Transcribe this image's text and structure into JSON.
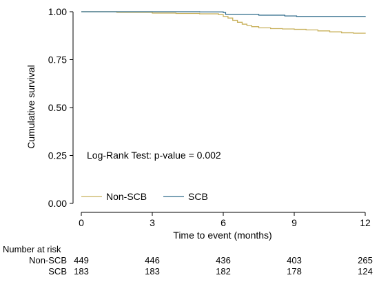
{
  "chart_data": {
    "type": "line",
    "subtype": "kaplan-meier step",
    "ylabel": "Cumulative survival",
    "xlabel": "Time to event (months)",
    "xlim": [
      0,
      12
    ],
    "ylim": [
      0,
      1
    ],
    "x_ticks": [
      "0",
      "3",
      "6",
      "9",
      "12"
    ],
    "y_ticks": [
      "0.00",
      "0.25",
      "0.50",
      "0.75",
      "1.00"
    ],
    "annotation": "Log-Rank Test: p-value = 0.002",
    "legend_position": "bottom-left inside plot",
    "grid": false,
    "series": [
      {
        "name": "Non-SCB",
        "color": "#c8b05a",
        "points": [
          [
            0,
            1.0
          ],
          [
            1.5,
            0.997
          ],
          [
            3.0,
            0.993
          ],
          [
            4.0,
            0.991
          ],
          [
            5.0,
            0.989
          ],
          [
            5.8,
            0.985
          ],
          [
            6.0,
            0.975
          ],
          [
            6.2,
            0.967
          ],
          [
            6.4,
            0.955
          ],
          [
            6.6,
            0.945
          ],
          [
            6.8,
            0.935
          ],
          [
            7.0,
            0.928
          ],
          [
            7.2,
            0.922
          ],
          [
            7.5,
            0.916
          ],
          [
            8.0,
            0.912
          ],
          [
            8.5,
            0.91
          ],
          [
            9.0,
            0.908
          ],
          [
            9.5,
            0.905
          ],
          [
            10.0,
            0.9
          ],
          [
            10.5,
            0.895
          ],
          [
            11.0,
            0.89
          ],
          [
            11.5,
            0.888
          ],
          [
            12.0,
            0.886
          ]
        ]
      },
      {
        "name": "SCB",
        "color": "#2d6a8a",
        "points": [
          [
            0,
            1.0
          ],
          [
            3.8,
            1.0
          ],
          [
            5.0,
            0.999
          ],
          [
            6.0,
            0.996
          ],
          [
            6.1,
            0.986
          ],
          [
            7.5,
            0.982
          ],
          [
            8.6,
            0.978
          ],
          [
            9.1,
            0.975
          ],
          [
            12.0,
            0.972
          ]
        ]
      }
    ],
    "risk_table": {
      "title": "Number at risk",
      "times": [
        0,
        3,
        6,
        9,
        12
      ],
      "rows": [
        {
          "label": "Non-SCB",
          "values": [
            "449",
            "446",
            "436",
            "403",
            "265"
          ]
        },
        {
          "label": "SCB",
          "values": [
            "183",
            "183",
            "182",
            "178",
            "124"
          ]
        }
      ]
    }
  }
}
